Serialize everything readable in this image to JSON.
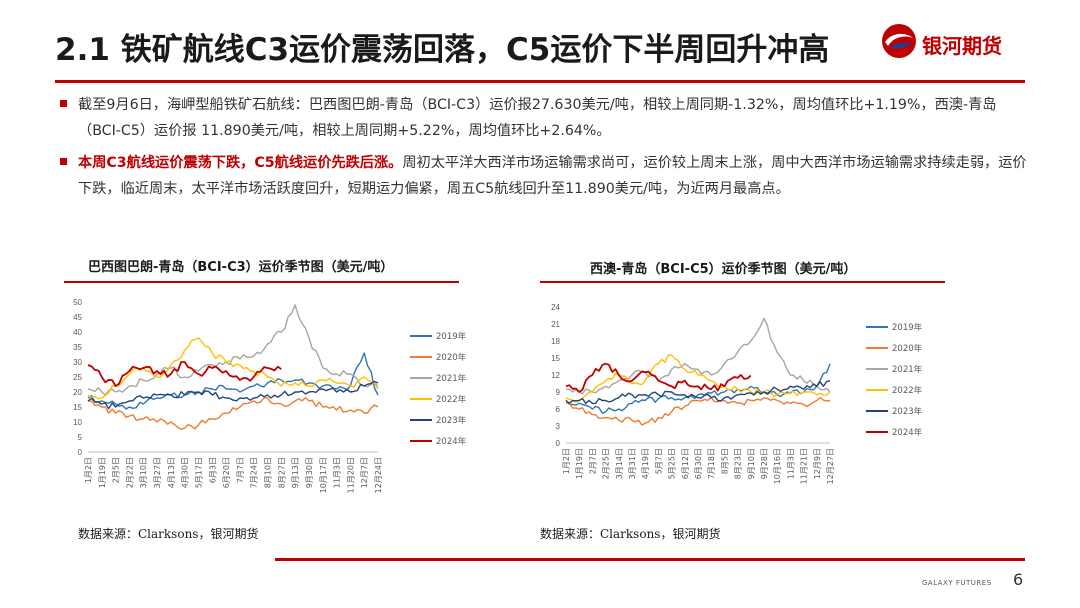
{
  "header": {
    "title": "2.1 铁矿航线C3运价震荡回落，C5运价下半周回升冲高",
    "logo_text": "银河期货",
    "brand_color": "#c00000"
  },
  "bullets": [
    {
      "bold": "",
      "text": "截至9月6日，海岬型船铁矿石航线：巴西图巴朗-青岛（BCI-C3）运价报27.630美元/吨，相较上周同期-1.32%，周均值环比+1.19%，西澳-青岛（BCI-C5）运价报 11.890美元/吨，相较上周同期+5.22%，周均值环比+2.64%。"
    },
    {
      "bold": "本周C3航线运价震荡下跌，C5航线运价先跌后涨。",
      "text": "周初太平洋大西洋市场运输需求尚可，运价较上周末上涨，周中大西洋市场运输需求持续走弱，运价下跌，临近周末，太平洋市场活跃度回升，短期运力偏紧，周五C5航线回升至11.890美元/吨，为近两月最高点。"
    }
  ],
  "chart_data": [
    {
      "type": "line",
      "title": "巴西图巴朗-青岛（BCI-C3）运价季节图（美元/吨）",
      "ylim": [
        0,
        50
      ],
      "yticks": [
        0,
        5,
        10,
        15,
        20,
        25,
        30,
        35,
        40,
        45,
        50
      ],
      "x_ticks": [
        "1月2日",
        "1月19日",
        "2月5日",
        "2月22日",
        "3月10日",
        "3月27日",
        "4月13日",
        "4月30日",
        "5月17日",
        "6月3日",
        "6月20日",
        "7月7日",
        "7月24日",
        "8月10日",
        "8月27日",
        "9月13日",
        "9月30日",
        "10月17日",
        "11月3日",
        "11月20日",
        "12月7日",
        "12月24日"
      ],
      "source": "数据来源：Clarksons，银河期货",
      "series": [
        {
          "name": "2019年",
          "color": "#2e75b6",
          "values": [
            18,
            17,
            16,
            15,
            16,
            18,
            19,
            19,
            20,
            21,
            21,
            20,
            22,
            23,
            24,
            24,
            23,
            22,
            21,
            22,
            33,
            19
          ]
        },
        {
          "name": "2020年",
          "color": "#ed7d31",
          "values": [
            17,
            15,
            13,
            12,
            11,
            10,
            10,
            8,
            9,
            11,
            13,
            15,
            17,
            18,
            16,
            17,
            17,
            15,
            14,
            14,
            13,
            15
          ]
        },
        {
          "name": "2021年",
          "color": "#a5a5a5",
          "values": [
            21,
            20,
            20,
            22,
            24,
            26,
            28,
            25,
            27,
            29,
            30,
            31,
            32,
            36,
            40,
            49,
            38,
            28,
            26,
            26,
            22,
            22
          ]
        },
        {
          "name": "2022年",
          "color": "#ffc000",
          "values": [
            19,
            18,
            22,
            26,
            28,
            25,
            29,
            34,
            38,
            33,
            30,
            29,
            27,
            25,
            22,
            23,
            22,
            24,
            23,
            22,
            25,
            21
          ]
        },
        {
          "name": "2023年",
          "color": "#264478",
          "values": [
            17,
            16,
            15,
            17,
            18,
            19,
            19,
            19,
            20,
            19,
            18,
            18,
            18,
            19,
            19,
            20,
            20,
            21,
            20,
            20,
            22,
            23
          ]
        },
        {
          "name": "2024年",
          "color": "#c00000",
          "values": [
            29,
            25,
            22,
            27,
            28,
            27,
            26,
            30,
            26,
            28,
            27,
            24,
            25,
            28,
            27.6
          ]
        }
      ]
    },
    {
      "type": "line",
      "title": "西澳-青岛（BCI-C5）运价季节图（美元/吨）",
      "ylim": [
        0,
        24
      ],
      "yticks": [
        0,
        3,
        6,
        9,
        12,
        15,
        18,
        21,
        24
      ],
      "x_ticks": [
        "1月2日",
        "1月19日",
        "2月7日",
        "2月25日",
        "3月14日",
        "3月31日",
        "4月19日",
        "5月7日",
        "5月25日",
        "6月12日",
        "6月30日",
        "7月18日",
        "8月5日",
        "8月23日",
        "9月10日",
        "9月28日",
        "10月16日",
        "11月3日",
        "11月21日",
        "12月9日",
        "12月27日"
      ],
      "source": "数据来源：Clarksons，银河期货",
      "series": [
        {
          "name": "2019年",
          "color": "#2e75b6",
          "values": [
            7.5,
            7,
            6,
            5.5,
            6,
            7,
            7.5,
            7.8,
            8,
            8,
            8.5,
            8.8,
            9,
            9.5,
            10,
            9,
            8.5,
            8.8,
            9,
            10,
            14
          ]
        },
        {
          "name": "2020年",
          "color": "#ed7d31",
          "values": [
            7,
            6,
            5,
            4.5,
            4,
            4,
            3.5,
            4.5,
            5.5,
            6.5,
            7.5,
            8,
            7.5,
            7,
            7.5,
            8,
            7.5,
            7,
            6.8,
            7.5,
            7.5
          ]
        },
        {
          "name": "2021年",
          "color": "#a5a5a5",
          "values": [
            9.5,
            9,
            9,
            10,
            11,
            12,
            12.5,
            11,
            13,
            14,
            13,
            12,
            14,
            16,
            18,
            22,
            16,
            12,
            11,
            10,
            9
          ]
        },
        {
          "name": "2022年",
          "color": "#ffc000",
          "values": [
            8,
            7.5,
            9,
            11,
            12,
            10.5,
            11,
            14,
            15.5,
            13,
            12,
            11,
            10,
            9.5,
            9,
            9,
            8.5,
            9,
            9,
            8.5,
            9
          ]
        },
        {
          "name": "2023年",
          "color": "#264478",
          "values": [
            7.5,
            7.5,
            7,
            7.5,
            8,
            8.5,
            8.5,
            8.5,
            9,
            8.5,
            8,
            8,
            8,
            8.5,
            8.8,
            9,
            9.5,
            10,
            9.5,
            10,
            11
          ]
        },
        {
          "name": "2024年",
          "color": "#c00000",
          "values": [
            10,
            9,
            12,
            14,
            12,
            11,
            12.5,
            11,
            10,
            11,
            10,
            9.5,
            10,
            11.5,
            11.89
          ]
        }
      ]
    }
  ],
  "footer": {
    "brand": "GALAXY FUTURES",
    "page": "6"
  }
}
